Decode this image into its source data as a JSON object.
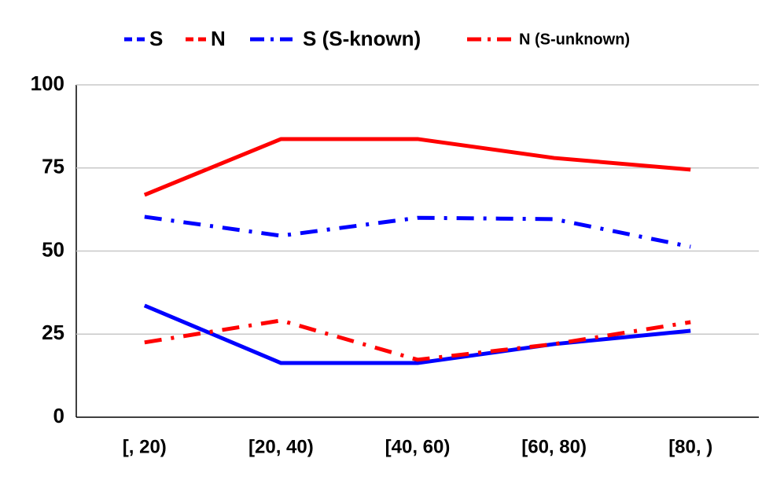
{
  "chart_data": {
    "type": "line",
    "categories": [
      "[, 20)",
      "[20, 40)",
      "[40, 60)",
      "[60, 80)",
      "[80, )"
    ],
    "series": [
      {
        "name": "S",
        "color": "#0000ff",
        "line_style": "solid",
        "values": [
          33.6,
          16.3,
          16.3,
          22.0,
          26.0
        ]
      },
      {
        "name": "N",
        "color": "#ff0000",
        "line_style": "solid",
        "values": [
          66.9,
          83.7,
          83.7,
          78.0,
          74.5
        ]
      },
      {
        "name": "S (S-known)",
        "color": "#0000ff",
        "line_style": "dashdot",
        "values": [
          60.3,
          54.6,
          60.0,
          59.6,
          51.3
        ]
      },
      {
        "name": "N (S-unknown)",
        "color": "#ff0000",
        "line_style": "dashdot",
        "values": [
          22.5,
          29.1,
          17.3,
          22.0,
          28.6
        ]
      }
    ],
    "ylim": [
      0,
      100
    ],
    "yticks": [
      0,
      25,
      50,
      75,
      100
    ],
    "grid": true,
    "legend": "top"
  }
}
